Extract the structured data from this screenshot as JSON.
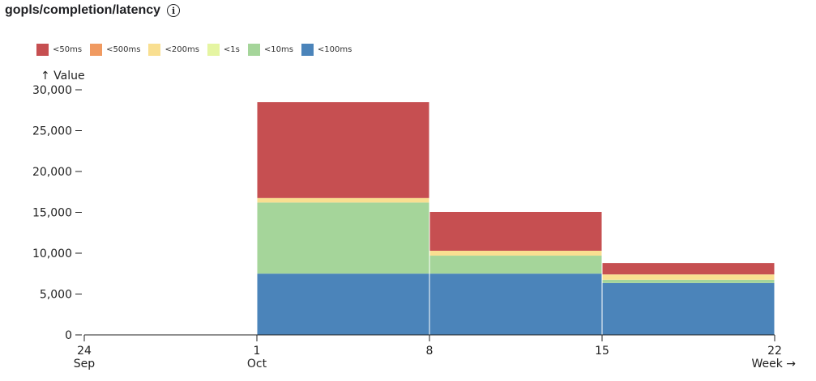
{
  "header": {
    "title": "gopls/completion/latency",
    "info_icon": "info-circle-icon"
  },
  "chart_data": {
    "type": "bar",
    "stacked": true,
    "ylabel": "↑ Value",
    "xlabel": "Week →",
    "ylim": [
      0,
      30000
    ],
    "yticks": [
      "0",
      "5,000",
      "10,000",
      "15,000",
      "20,000",
      "25,000",
      "30,000"
    ],
    "ytick_values": [
      0,
      5000,
      10000,
      15000,
      20000,
      25000,
      30000
    ],
    "xticks": [
      {
        "day": "24",
        "month": "Sep"
      },
      {
        "day": "1",
        "month": "Oct"
      },
      {
        "day": "8",
        "month": ""
      },
      {
        "day": "15",
        "month": ""
      },
      {
        "day": "22",
        "month": ""
      }
    ],
    "weeks": [
      "Oct 1",
      "Oct 8",
      "Oct 15"
    ],
    "week_start_index": [
      1,
      2,
      3
    ],
    "legend": [
      {
        "name": "<50ms",
        "color": "#c64f51"
      },
      {
        "name": "<500ms",
        "color": "#f09a61"
      },
      {
        "name": "<200ms",
        "color": "#f9df91"
      },
      {
        "name": "<1s",
        "color": "#e5f5a2"
      },
      {
        "name": "<10ms",
        "color": "#a5d59a"
      },
      {
        "name": "<100ms",
        "color": "#4b84ba"
      }
    ],
    "series": [
      {
        "name": "<100ms",
        "color": "#4b84ba",
        "values": [
          7500,
          7500,
          6350
        ]
      },
      {
        "name": "<10ms",
        "color": "#a5d59a",
        "values": [
          8700,
          2200,
          400
        ]
      },
      {
        "name": "<1s",
        "color": "#e5f5a2",
        "values": [
          0,
          0,
          0
        ]
      },
      {
        "name": "<200ms",
        "color": "#f9df91",
        "values": [
          550,
          600,
          650
        ]
      },
      {
        "name": "<500ms",
        "color": "#f09a61",
        "values": [
          0,
          0,
          0
        ]
      },
      {
        "name": "<50ms",
        "color": "#c64f51",
        "values": [
          11750,
          4750,
          1400
        ]
      }
    ],
    "grid": false,
    "legend_position": "top-left"
  }
}
